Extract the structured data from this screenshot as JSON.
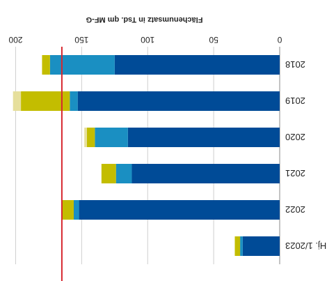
{
  "chart_data": {
    "type": "bar",
    "orientation": "horizontal-stacked",
    "display": "rotated-180",
    "categories": [
      "Hj. 1/2023",
      "2022",
      "2021",
      "2020",
      "2019",
      "2018"
    ],
    "series": [
      {
        "color": "#004b97",
        "values": [
          28,
          152,
          112,
          115,
          153,
          125
        ]
      },
      {
        "color": "#1a8fc2",
        "values": [
          2,
          4,
          12,
          25,
          6,
          49
        ]
      },
      {
        "color": "#c3bd00",
        "values": [
          4,
          9,
          11,
          6,
          37,
          6
        ]
      },
      {
        "color": "#e6df9c",
        "values": [
          0,
          0,
          0,
          2,
          6,
          0
        ]
      }
    ],
    "xlabel": "Flächenumsatz in Tsd. qm MF-G",
    "xticks": [
      0,
      50,
      100,
      150,
      200
    ],
    "xlim": [
      0,
      205
    ],
    "reference_line": {
      "value": 165,
      "color": "#d7262e"
    },
    "grid": true
  }
}
